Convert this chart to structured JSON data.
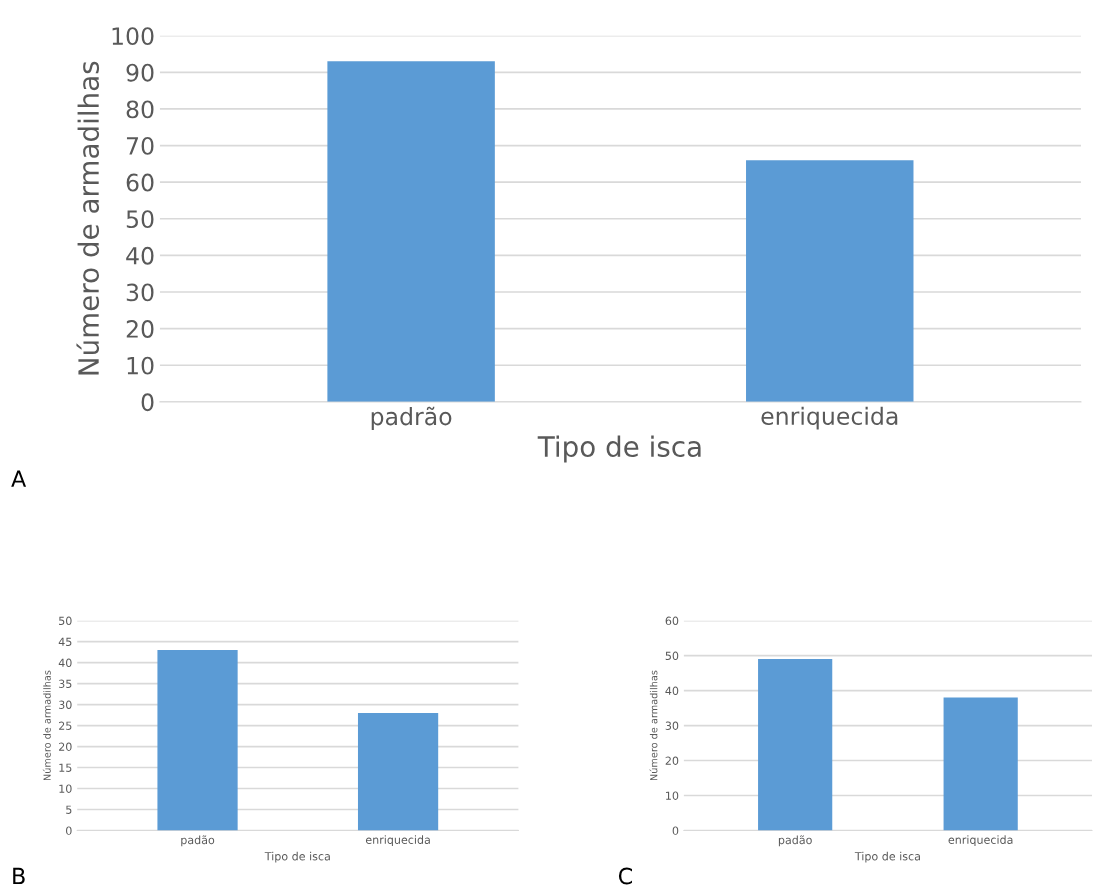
{
  "chart_data": [
    {
      "type": "bar",
      "categories": [
        "padrão",
        "enriquecida"
      ],
      "values": [
        93,
        66
      ],
      "color": "#5b9bd5",
      "xlabel": "Tipo de isca",
      "ylabel": "Número de armadilhas",
      "ylim": [
        0,
        100
      ],
      "yticks": [
        0,
        10,
        20,
        30,
        40,
        50,
        60,
        70,
        80,
        90,
        100
      ],
      "grid": "y",
      "annotations": [
        "A"
      ]
    },
    {
      "type": "bar",
      "categories": [
        "padão",
        "enriquecida"
      ],
      "values": [
        43,
        28
      ],
      "color": "#5b9bd5",
      "xlabel": "Tipo de isca",
      "ylabel": "Número de armadilhas",
      "ylim": [
        0,
        50
      ],
      "yticks": [
        0,
        5,
        10,
        15,
        20,
        25,
        30,
        35,
        40,
        45,
        50
      ],
      "grid": "y",
      "annotations": [
        "B"
      ]
    },
    {
      "type": "bar",
      "categories": [
        "padão",
        "enriquecida"
      ],
      "values": [
        49,
        38
      ],
      "color": "#5b9bd5",
      "xlabel": "Tipo de isca",
      "ylabel": "Número de armadilhas",
      "ylim": [
        0,
        60
      ],
      "yticks": [
        0,
        10,
        20,
        30,
        40,
        50,
        60
      ],
      "grid": "y",
      "annotations": [
        "C"
      ]
    }
  ]
}
